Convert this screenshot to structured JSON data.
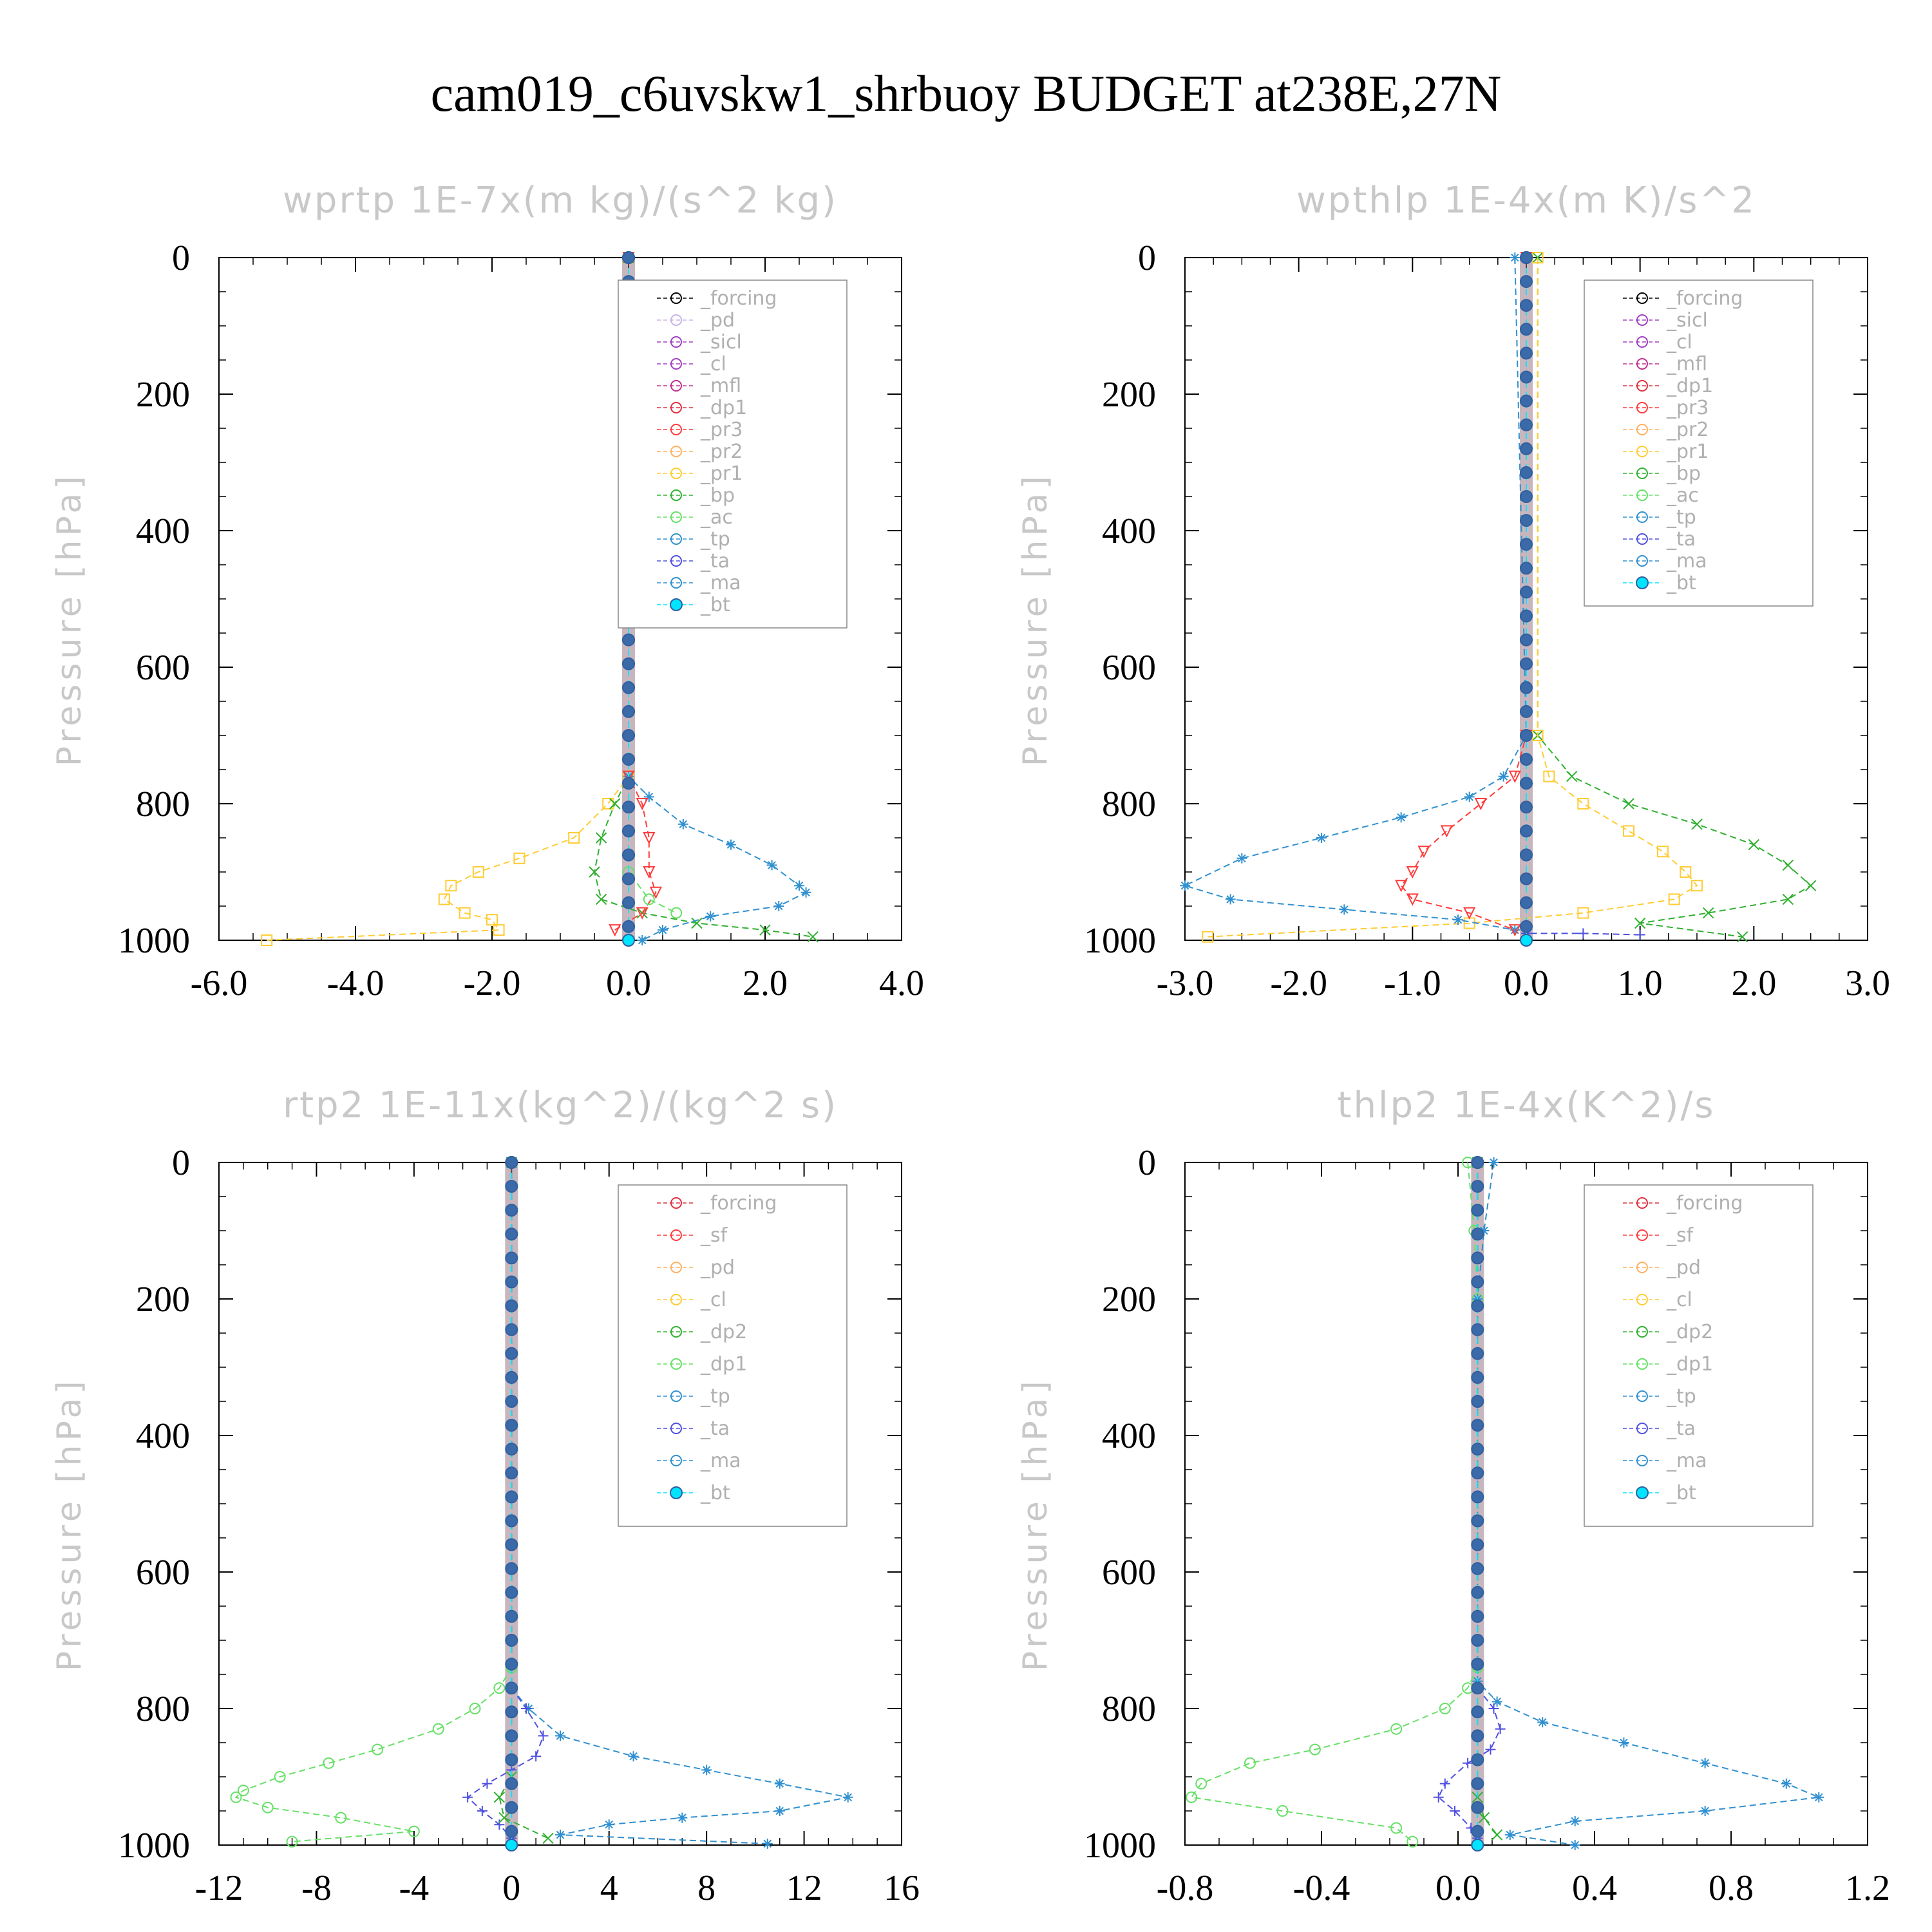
{
  "title": "cam019_c6uvskw1_shrbuoy  BUDGET at238E,27N",
  "colors": {
    "forcing_black": "#000000",
    "light_purple": "#c8b4e6",
    "purple": "#a040c0",
    "magenta": "#c03090",
    "red": "#e03040",
    "orange_red": "#ff3c3c",
    "light_orange": "#ffb060",
    "yellow": "#ffcc33",
    "green": "#30b030",
    "light_green": "#66e066",
    "blue": "#3090d0",
    "violet": "#5050e0",
    "cyan": "#00e5ff"
  },
  "chart_data": [
    {
      "type": "line",
      "title": "wprtp  1E-7x(m kg)/(s^2 kg)",
      "ylabel": "Pressure [hPa]",
      "xlabel": "",
      "xlim": [
        -6.0,
        4.0
      ],
      "ylim": [
        1000,
        0
      ],
      "xticks": [
        "-6.0",
        "-4.0",
        "-2.0",
        "0.0",
        "2.0",
        "4.0"
      ],
      "yticks": [
        "0",
        "200",
        "400",
        "600",
        "800",
        "1000"
      ],
      "legend_position": "upper-right",
      "legend": [
        "_forcing",
        "_pd",
        "_sicl",
        "_cl",
        "_mfl",
        "_dp1",
        "_pr3",
        "_pr2",
        "_pr1",
        "_bp",
        "_ac",
        "_tp",
        "_ta",
        "_ma",
        "_bt"
      ],
      "series": [
        {
          "name": "_pr1",
          "color": "#ffcc33",
          "marker": "square",
          "points": [
            [
              0,
              0
            ],
            [
              0,
              500
            ],
            [
              0,
              760
            ],
            [
              -0.3,
              800
            ],
            [
              -0.8,
              850
            ],
            [
              -1.6,
              880
            ],
            [
              -2.2,
              900
            ],
            [
              -2.6,
              920
            ],
            [
              -2.7,
              940
            ],
            [
              -2.4,
              960
            ],
            [
              -2.0,
              970
            ],
            [
              -1.9,
              985
            ],
            [
              -5.3,
              1000
            ]
          ]
        },
        {
          "name": "_bp",
          "color": "#30b030",
          "marker": "x",
          "points": [
            [
              0,
              0
            ],
            [
              0,
              760
            ],
            [
              -0.2,
              800
            ],
            [
              -0.4,
              850
            ],
            [
              -0.5,
              900
            ],
            [
              -0.4,
              940
            ],
            [
              0.2,
              960
            ],
            [
              1.0,
              975
            ],
            [
              2.0,
              985
            ],
            [
              2.7,
              995
            ]
          ]
        },
        {
          "name": "_tp",
          "color": "#3090d0",
          "marker": "asterisk",
          "points": [
            [
              0,
              0
            ],
            [
              0,
              760
            ],
            [
              0.3,
              790
            ],
            [
              0.8,
              830
            ],
            [
              1.5,
              860
            ],
            [
              2.1,
              890
            ],
            [
              2.5,
              920
            ],
            [
              2.6,
              930
            ],
            [
              2.2,
              950
            ],
            [
              1.2,
              965
            ],
            [
              0.5,
              985
            ],
            [
              0.2,
              1000
            ]
          ]
        },
        {
          "name": "_pr3",
          "color": "#ff3c3c",
          "marker": "tri-down",
          "points": [
            [
              0,
              0
            ],
            [
              0,
              760
            ],
            [
              0.2,
              800
            ],
            [
              0.3,
              850
            ],
            [
              0.3,
              900
            ],
            [
              0.4,
              930
            ],
            [
              0.2,
              960
            ],
            [
              -0.2,
              985
            ]
          ]
        },
        {
          "name": "_ac",
          "color": "#66e066",
          "marker": "circle",
          "points": [
            [
              0,
              0
            ],
            [
              0,
              900
            ],
            [
              0.3,
              940
            ],
            [
              0.7,
              960
            ]
          ]
        },
        {
          "name": "_bt",
          "color": "#00e5ff",
          "marker": "dot",
          "points": [
            [
              0,
              0
            ],
            [
              0,
              1000
            ]
          ]
        }
      ]
    },
    {
      "type": "line",
      "title": "wpthlp  1E-4x(m K)/s^2",
      "ylabel": "Pressure [hPa]",
      "xlabel": "",
      "xlim": [
        -3.0,
        3.0
      ],
      "ylim": [
        1000,
        0
      ],
      "xticks": [
        "-3.0",
        "-2.0",
        "-1.0",
        "0.0",
        "1.0",
        "2.0",
        "3.0"
      ],
      "yticks": [
        "0",
        "200",
        "400",
        "600",
        "800",
        "1000"
      ],
      "legend_position": "upper-right",
      "legend": [
        "_forcing",
        "_sicl",
        "_cl",
        "_mfl",
        "_dp1",
        "_pr3",
        "_pr2",
        "_pr1",
        "_bp",
        "_ac",
        "_tp",
        "_ta",
        "_ma",
        "_bt"
      ],
      "series": [
        {
          "name": "_bp",
          "color": "#30b030",
          "marker": "x",
          "points": [
            [
              0.1,
              0
            ],
            [
              0.1,
              700
            ],
            [
              0.4,
              760
            ],
            [
              0.9,
              800
            ],
            [
              1.5,
              830
            ],
            [
              2.0,
              860
            ],
            [
              2.3,
              890
            ],
            [
              2.5,
              920
            ],
            [
              2.3,
              940
            ],
            [
              1.6,
              960
            ],
            [
              1.0,
              975
            ],
            [
              1.9,
              995
            ]
          ]
        },
        {
          "name": "_pr1",
          "color": "#ffcc33",
          "marker": "square",
          "points": [
            [
              0.1,
              0
            ],
            [
              0.1,
              700
            ],
            [
              0.2,
              760
            ],
            [
              0.5,
              800
            ],
            [
              0.9,
              840
            ],
            [
              1.2,
              870
            ],
            [
              1.4,
              900
            ],
            [
              1.5,
              920
            ],
            [
              1.3,
              940
            ],
            [
              0.5,
              960
            ],
            [
              -0.5,
              975
            ],
            [
              -2.8,
              995
            ]
          ]
        },
        {
          "name": "_tp",
          "color": "#3090d0",
          "marker": "asterisk",
          "points": [
            [
              -0.1,
              0
            ],
            [
              0,
              700
            ],
            [
              -0.2,
              760
            ],
            [
              -0.5,
              790
            ],
            [
              -1.1,
              820
            ],
            [
              -1.8,
              850
            ],
            [
              -2.5,
              880
            ],
            [
              -3.0,
              920
            ],
            [
              -2.6,
              940
            ],
            [
              -1.6,
              955
            ],
            [
              -0.6,
              970
            ],
            [
              -0.1,
              985
            ]
          ]
        },
        {
          "name": "_pr3",
          "color": "#ff3c3c",
          "marker": "tri-down",
          "points": [
            [
              0,
              0
            ],
            [
              0,
              700
            ],
            [
              -0.1,
              760
            ],
            [
              -0.4,
              800
            ],
            [
              -0.7,
              840
            ],
            [
              -0.9,
              870
            ],
            [
              -1.0,
              900
            ],
            [
              -1.1,
              920
            ],
            [
              -1.0,
              940
            ],
            [
              -0.5,
              960
            ],
            [
              -0.1,
              985
            ]
          ]
        },
        {
          "name": "_ta",
          "color": "#5050e0",
          "marker": "plus",
          "points": [
            [
              0,
              0
            ],
            [
              0,
              990
            ],
            [
              0.5,
              990
            ],
            [
              1.0,
              992
            ]
          ]
        },
        {
          "name": "_bt",
          "color": "#00e5ff",
          "marker": "dot",
          "points": [
            [
              0,
              0
            ],
            [
              0,
              1000
            ]
          ]
        }
      ]
    },
    {
      "type": "line",
      "title": "rtp2  1E-11x(kg^2)/(kg^2 s)",
      "ylabel": "Pressure [hPa]",
      "xlabel": "",
      "xlim": [
        -12,
        16
      ],
      "ylim": [
        1000,
        0
      ],
      "xticks": [
        "-12",
        "-8",
        "-4",
        "0",
        "4",
        "8",
        "12",
        "16"
      ],
      "yticks": [
        "0",
        "200",
        "400",
        "600",
        "800",
        "1000"
      ],
      "legend_position": "upper-right",
      "legend": [
        "_forcing",
        "_sf",
        "_pd",
        "_cl",
        "_dp2",
        "_dp1",
        "_tp",
        "_ta",
        "_ma",
        "_bt"
      ],
      "series": [
        {
          "name": "_dp1",
          "color": "#66e066",
          "marker": "circle",
          "points": [
            [
              0,
              0
            ],
            [
              0,
              740
            ],
            [
              -0.5,
              770
            ],
            [
              -1.5,
              800
            ],
            [
              -3.0,
              830
            ],
            [
              -5.5,
              860
            ],
            [
              -7.5,
              880
            ],
            [
              -9.5,
              900
            ],
            [
              -11.0,
              920
            ],
            [
              -11.3,
              930
            ],
            [
              -10.0,
              945
            ],
            [
              -7.0,
              960
            ],
            [
              -4.0,
              980
            ],
            [
              -9.0,
              995
            ]
          ]
        },
        {
          "name": "_tp",
          "color": "#3090d0",
          "marker": "asterisk",
          "points": [
            [
              0,
              0
            ],
            [
              0,
              770
            ],
            [
              0.7,
              800
            ],
            [
              2.0,
              840
            ],
            [
              5.0,
              870
            ],
            [
              8.0,
              890
            ],
            [
              11.0,
              910
            ],
            [
              13.8,
              930
            ],
            [
              11.0,
              950
            ],
            [
              7.0,
              960
            ],
            [
              4.0,
              970
            ],
            [
              2.0,
              985
            ],
            [
              10.5,
              998
            ]
          ]
        },
        {
          "name": "_ta",
          "color": "#5050e0",
          "marker": "plus",
          "points": [
            [
              0,
              0
            ],
            [
              0,
              770
            ],
            [
              0.6,
              800
            ],
            [
              1.3,
              840
            ],
            [
              1.0,
              870
            ],
            [
              0,
              890
            ],
            [
              -1.0,
              910
            ],
            [
              -1.8,
              930
            ],
            [
              -1.2,
              950
            ],
            [
              -0.5,
              970
            ],
            [
              0,
              990
            ]
          ]
        },
        {
          "name": "_dp2",
          "color": "#30b030",
          "marker": "x",
          "points": [
            [
              0,
              0
            ],
            [
              0,
              900
            ],
            [
              -0.5,
              930
            ],
            [
              -0.3,
              960
            ],
            [
              1.5,
              990
            ]
          ]
        },
        {
          "name": "_bt",
          "color": "#00e5ff",
          "marker": "dot",
          "points": [
            [
              0,
              0
            ],
            [
              0,
              1000
            ]
          ]
        }
      ]
    },
    {
      "type": "line",
      "title": "thlp2  1E-4x(K^2)/s",
      "ylabel": "Pressure [hPa]",
      "xlabel": "",
      "xlim": [
        -0.9,
        1.2
      ],
      "ylim": [
        1000,
        0
      ],
      "xticks": [
        "-0.8",
        "-0.4",
        "0.0",
        "0.4",
        "0.8",
        "1.2"
      ],
      "yticks": [
        "0",
        "200",
        "400",
        "600",
        "800",
        "1000"
      ],
      "legend_position": "upper-right",
      "legend": [
        "_forcing",
        "_sf",
        "_pd",
        "_cl",
        "_dp2",
        "_dp1",
        "_tp",
        "_ta",
        "_ma",
        "_bt"
      ],
      "series": [
        {
          "name": "_dp1",
          "color": "#66e066",
          "marker": "circle",
          "points": [
            [
              -0.03,
              0
            ],
            [
              -0.01,
              100
            ],
            [
              0,
              200
            ],
            [
              0,
              740
            ],
            [
              -0.03,
              770
            ],
            [
              -0.1,
              800
            ],
            [
              -0.25,
              830
            ],
            [
              -0.5,
              860
            ],
            [
              -0.7,
              880
            ],
            [
              -0.85,
              910
            ],
            [
              -0.88,
              930
            ],
            [
              -0.6,
              950
            ],
            [
              -0.25,
              975
            ],
            [
              -0.2,
              995
            ]
          ]
        },
        {
          "name": "_tp",
          "color": "#3090d0",
          "marker": "asterisk",
          "points": [
            [
              0.05,
              0
            ],
            [
              0.02,
              100
            ],
            [
              0,
              200
            ],
            [
              0,
              760
            ],
            [
              0.06,
              790
            ],
            [
              0.2,
              820
            ],
            [
              0.45,
              850
            ],
            [
              0.7,
              880
            ],
            [
              0.95,
              910
            ],
            [
              1.05,
              930
            ],
            [
              0.7,
              950
            ],
            [
              0.3,
              965
            ],
            [
              0.1,
              985
            ],
            [
              0.3,
              1000
            ]
          ]
        },
        {
          "name": "_ta",
          "color": "#5050e0",
          "marker": "plus",
          "points": [
            [
              0,
              0
            ],
            [
              0,
              770
            ],
            [
              0.05,
              800
            ],
            [
              0.07,
              830
            ],
            [
              0.04,
              860
            ],
            [
              -0.03,
              880
            ],
            [
              -0.1,
              910
            ],
            [
              -0.12,
              930
            ],
            [
              -0.07,
              950
            ],
            [
              -0.02,
              975
            ],
            [
              0,
              990
            ]
          ]
        },
        {
          "name": "_dp2",
          "color": "#30b030",
          "marker": "x",
          "points": [
            [
              0,
              0
            ],
            [
              0,
              930
            ],
            [
              0.02,
              960
            ],
            [
              0.06,
              985
            ]
          ]
        },
        {
          "name": "_bt",
          "color": "#00e5ff",
          "marker": "dot",
          "points": [
            [
              0,
              0
            ],
            [
              0,
              1000
            ]
          ]
        }
      ]
    }
  ]
}
